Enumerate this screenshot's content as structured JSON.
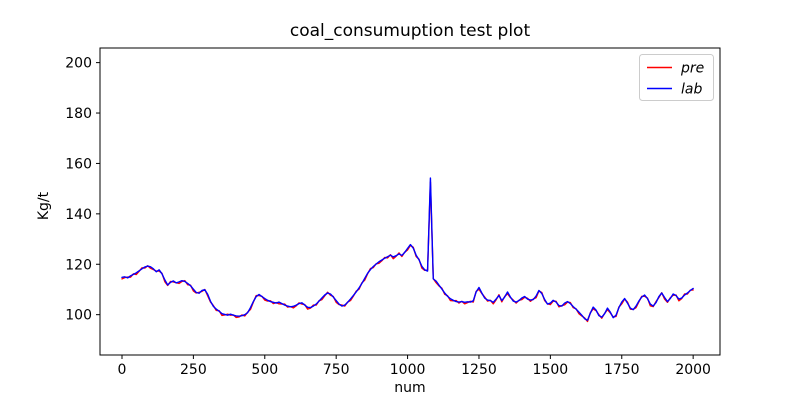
{
  "chart_data": {
    "type": "line",
    "title": "coal_consumuption test plot",
    "xlabel": "num",
    "ylabel": "Kg/t",
    "xlim": [
      -77,
      2094
    ],
    "ylim": [
      84,
      205.8
    ],
    "xticks": [
      0,
      250,
      500,
      750,
      1000,
      1250,
      1500,
      1750,
      2000
    ],
    "yticks": [
      100,
      120,
      140,
      160,
      180,
      200
    ],
    "grid": false,
    "legend": {
      "position": "upper right",
      "entries": [
        "pre",
        "lab"
      ]
    },
    "x_start": 0,
    "x_step": 10,
    "series": [
      {
        "name": "pre",
        "color": "#ff0000",
        "values": [
          114.2,
          114.7,
          114.9,
          114.9,
          116.2,
          115.9,
          117.2,
          118.6,
          118.5,
          119.4,
          118.4,
          117.9,
          117.3,
          117.3,
          116.4,
          113.1,
          111.6,
          113.2,
          113.0,
          112.7,
          112.4,
          113.2,
          113.5,
          111.9,
          111.7,
          109.4,
          108.6,
          108.9,
          109.2,
          110.0,
          107.5,
          105.0,
          103.6,
          101.7,
          101.6,
          99.7,
          99.9,
          100.2,
          99.8,
          99.9,
          98.9,
          99.1,
          99.9,
          99.5,
          101.0,
          102.1,
          105.0,
          107.6,
          107.6,
          107.3,
          105.8,
          105.4,
          105.5,
          104.4,
          104.8,
          104.3,
          104.2,
          104.2,
          103.0,
          103.2,
          102.7,
          103.5,
          104.7,
          104.2,
          104.0,
          102.2,
          102.6,
          103.8,
          103.8,
          105.5,
          106.0,
          107.5,
          108.9,
          107.7,
          107.2,
          104.9,
          104.0,
          103.8,
          103.4,
          105.0,
          105.6,
          107.3,
          109.3,
          110.1,
          112.6,
          113.7,
          116.2,
          118.3,
          118.7,
          120.2,
          120.4,
          121.4,
          122.7,
          122.5,
          123.8,
          122.2,
          123.2,
          124.5,
          123.1,
          124.8,
          125.7,
          127.5,
          126.7,
          123.1,
          122.0,
          118.5,
          117.6,
          117.7,
          152.6,
          114.3,
          112.7,
          111.4,
          110.5,
          108.1,
          107.5,
          105.6,
          105.5,
          105.6,
          104.6,
          105.3,
          104.3,
          104.8,
          105.3,
          105.0,
          109.2,
          110.1,
          108.4,
          107.0,
          105.4,
          105.7,
          104.3,
          105.9,
          107.9,
          105.1,
          107.2,
          108.3,
          106.8,
          105.8,
          104.6,
          105.7,
          106.0,
          106.9,
          106.5,
          105.3,
          106.2,
          106.7,
          109.4,
          108.8,
          105.6,
          104.3,
          104.0,
          105.4,
          105.3,
          103.1,
          103.6,
          103.9,
          105.0,
          104.8,
          102.8,
          102.3,
          100.4,
          99.5,
          98.7,
          97.3,
          100.8,
          102.3,
          101.6,
          100.0,
          98.6,
          100.5,
          102.0,
          100.7,
          99.1,
          99.3,
          103.0,
          104.3,
          106.2,
          105.0,
          102.2,
          102.1,
          102.8,
          105.1,
          107.3,
          107.3,
          106.6,
          103.5,
          103.2,
          105.2,
          106.8,
          108.7,
          106.2,
          104.9,
          106.7,
          107.7,
          107.8,
          105.5,
          106.4,
          108.2,
          108.2,
          109.7,
          109.8
        ]
      },
      {
        "name": "lab",
        "color": "#0000ff",
        "values": [
          114.8,
          115.0,
          114.6,
          115.4,
          116.0,
          116.6,
          117.4,
          118.2,
          118.9,
          119.3,
          119.0,
          118.2,
          117.0,
          117.8,
          116.2,
          113.8,
          111.8,
          112.8,
          113.4,
          112.6,
          113.0,
          113.5,
          113.2,
          112.4,
          111.5,
          110.1,
          108.8,
          108.5,
          109.6,
          109.9,
          108.1,
          105.3,
          103.3,
          102.2,
          101.4,
          100.4,
          100.1,
          99.8,
          100.2,
          99.8,
          99.5,
          99.4,
          99.6,
          100.0,
          100.8,
          102.8,
          105.2,
          107.2,
          108.0,
          107.2,
          106.4,
          105.7,
          105.2,
          104.9,
          104.6,
          105.0,
          104.4,
          103.8,
          103.4,
          103.1,
          103.3,
          103.8,
          104.4,
          104.7,
          103.8,
          102.9,
          102.8,
          103.4,
          104.2,
          105.4,
          106.6,
          107.8,
          108.6,
          108.2,
          107.0,
          105.6,
          104.2,
          103.4,
          103.8,
          104.9,
          106.2,
          107.6,
          109.0,
          110.6,
          112.4,
          114.4,
          116.4,
          117.9,
          119.1,
          120.1,
          121.0,
          121.7,
          122.4,
          123.0,
          123.6,
          122.9,
          123.4,
          124.1,
          123.5,
          124.7,
          126.3,
          127.8,
          126.4,
          123.6,
          121.8,
          119.2,
          117.8,
          117.3,
          154.2,
          114.2,
          113.3,
          111.7,
          110.2,
          108.6,
          107.3,
          106.3,
          105.7,
          105.2,
          105.0,
          105.2,
          104.9,
          105.1,
          105.0,
          105.5,
          109.0,
          110.8,
          108.6,
          106.6,
          105.8,
          105.6,
          104.9,
          106.2,
          107.6,
          105.6,
          107.0,
          109.0,
          107.0,
          105.4,
          105.0,
          105.6,
          106.6,
          107.2,
          106.2,
          105.8,
          106.0,
          107.4,
          109.6,
          108.4,
          106.0,
          104.2,
          104.6,
          105.7,
          105.0,
          103.6,
          103.4,
          104.6,
          105.2,
          104.4,
          103.2,
          102.2,
          101.0,
          99.8,
          98.4,
          97.8,
          100.6,
          103.0,
          101.8,
          99.6,
          99.0,
          100.4,
          102.6,
          101.0,
          98.8,
          99.8,
          102.8,
          105.0,
          106.4,
          104.6,
          102.6,
          102.0,
          103.4,
          105.4,
          107.0,
          107.8,
          106.4,
          104.2,
          103.4,
          104.8,
          107.2,
          108.6,
          106.8,
          105.2,
          106.4,
          108.2,
          107.6,
          106.2,
          106.6,
          107.8,
          108.6,
          109.6,
          110.4
        ]
      }
    ]
  }
}
